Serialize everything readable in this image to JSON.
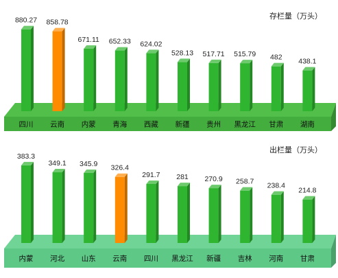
{
  "chart_data": [
    {
      "type": "bar",
      "title": "存栏量（万头）",
      "categories": [
        "四川",
        "云南",
        "内蒙",
        "青海",
        "西藏",
        "新疆",
        "贵州",
        "黑龙江",
        "甘肃",
        "湖南"
      ],
      "values": [
        880.27,
        858.78,
        671.11,
        652.33,
        624.02,
        528.13,
        517.71,
        515.79,
        482,
        438.1
      ],
      "value_labels": [
        "880.27",
        "858.78",
        "671.11",
        "652.33",
        "624.02",
        "528.13",
        "517.71",
        "515.79",
        "482",
        "438.1"
      ],
      "highlight_category": "云南",
      "ylim": [
        0,
        900
      ],
      "grid": false,
      "colors": {
        "bar": "#2fb52f",
        "highlight": "#ff8c00",
        "base": "#52bf4a",
        "base_front": "#43ad3e"
      }
    },
    {
      "type": "bar",
      "title": "出栏量（万头）",
      "categories": [
        "内蒙",
        "河北",
        "山东",
        "云南",
        "四川",
        "黑龙江",
        "新疆",
        "吉林",
        "河南",
        "甘肃"
      ],
      "values": [
        383.3,
        349.1,
        345.9,
        326.4,
        291.7,
        281,
        270.9,
        258.7,
        238.4,
        214.8
      ],
      "value_labels": [
        "383.3",
        "349.1",
        "345.9",
        "326.4",
        "291.7",
        "281",
        "270.9",
        "258.7",
        "238.4",
        "214.8"
      ],
      "highlight_category": "云南",
      "ylim": [
        0,
        400
      ],
      "grid": false,
      "colors": {
        "bar": "#2fb52f",
        "highlight": "#ff8c00",
        "base": "#6fd496",
        "base_front": "#5ec886"
      }
    }
  ]
}
